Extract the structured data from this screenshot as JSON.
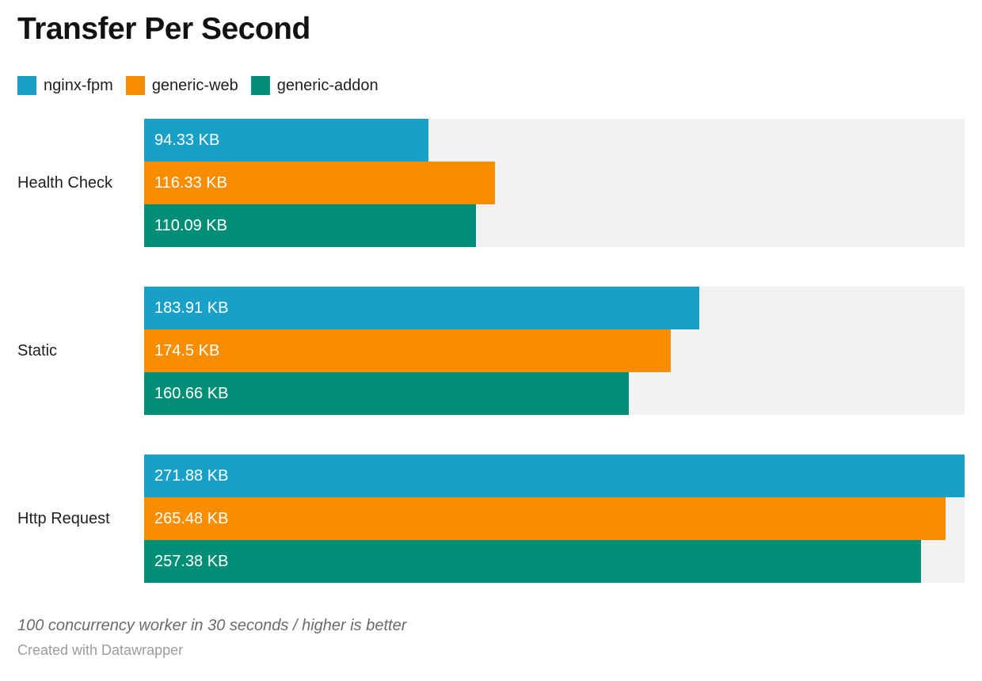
{
  "header": {
    "title": "Transfer Per Second"
  },
  "legend": {
    "position": "top",
    "items": [
      {
        "label": "nginx-fpm",
        "color": "#18a0c8"
      },
      {
        "label": "generic-web",
        "color": "#f98d00"
      },
      {
        "label": "generic-addon",
        "color": "#008f76"
      }
    ]
  },
  "chart_data": {
    "type": "bar",
    "orientation": "horizontal",
    "title": "Transfer Per Second",
    "categories": [
      "Health Check",
      "Static",
      "Http Request"
    ],
    "series": [
      {
        "name": "nginx-fpm",
        "color": "#18a0c8",
        "values": [
          94.33,
          183.91,
          271.88
        ],
        "display_values": [
          "94.33 KB",
          "183.91 KB",
          "271.88 KB"
        ]
      },
      {
        "name": "generic-web",
        "color": "#f98d00",
        "values": [
          116.33,
          174.5,
          265.48
        ],
        "display_values": [
          "116.33 KB",
          "174.5 KB",
          "265.48 KB"
        ]
      },
      {
        "name": "generic-addon",
        "color": "#008f76",
        "values": [
          110.09,
          160.66,
          257.38
        ],
        "display_values": [
          "110.09 KB",
          "160.66 KB",
          "257.38 KB"
        ]
      }
    ],
    "value_unit": "KB",
    "xlim": [
      0,
      271.88
    ],
    "grid": false,
    "track_color": "#f2f2f3",
    "bar_label_position": "inside-left"
  },
  "footer": {
    "note": "100 concurrency worker in 30 seconds / higher is better",
    "attribution": "Created with Datawrapper"
  }
}
